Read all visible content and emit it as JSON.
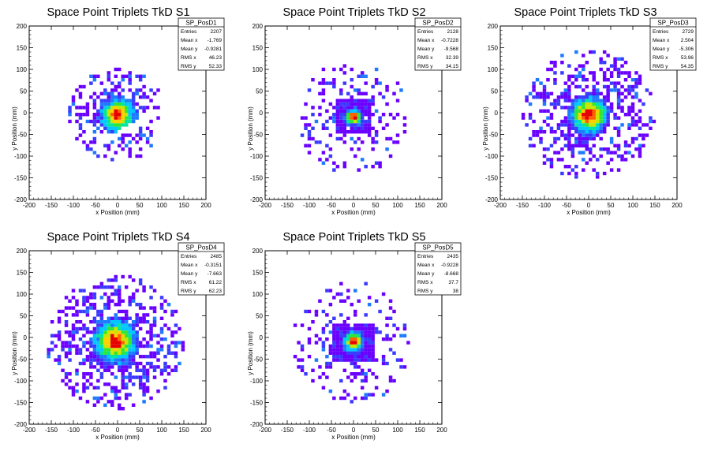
{
  "chart_data": [
    {
      "type": "heatmap",
      "title": "Space Point Triplets TkD S1",
      "xlabel": "x Position (mm)",
      "ylabel": "y Position (mm)",
      "xlim": [
        -200,
        200
      ],
      "ylim": [
        -200,
        200
      ],
      "xticks": [
        "-200",
        "-150",
        "-100",
        "-50",
        "0",
        "50",
        "100",
        "150",
        "200"
      ],
      "yticks": [
        "-200",
        "-150",
        "-100",
        "-50",
        "0",
        "50",
        "100",
        "150",
        "200"
      ],
      "stats": {
        "name": "SP_PosD1",
        "rows": [
          {
            "label": "Entries",
            "value": "2207"
          },
          {
            "label": "Mean x",
            "value": "-1.769"
          },
          {
            "label": "Mean y",
            "value": "-0.9281"
          },
          {
            "label": "RMS x",
            "value": "46.23"
          },
          {
            "label": "RMS y",
            "value": "52.33"
          }
        ]
      },
      "pattern": {
        "center": [
          0,
          -5
        ],
        "core_sigma": 20,
        "halo_radius": 110,
        "density": 0.65,
        "gap_band": true,
        "seed": 11
      }
    },
    {
      "type": "heatmap",
      "title": "Space Point Triplets TkD S2",
      "xlabel": "x Position (mm)",
      "ylabel": "y Position (mm)",
      "xlim": [
        -200,
        200
      ],
      "ylim": [
        -200,
        200
      ],
      "xticks": [
        "-200",
        "-150",
        "-100",
        "-50",
        "0",
        "50",
        "100",
        "150",
        "200"
      ],
      "yticks": [
        "-200",
        "-150",
        "-100",
        "-50",
        "0",
        "50",
        "100",
        "150",
        "200"
      ],
      "stats": {
        "name": "SP_PosD2",
        "rows": [
          {
            "label": "Entries",
            "value": "2128"
          },
          {
            "label": "Mean x",
            "value": "-0.7228"
          },
          {
            "label": "Mean y",
            "value": "-9.568"
          },
          {
            "label": "RMS x",
            "value": "32.39"
          },
          {
            "label": "RMS y",
            "value": "34.15"
          }
        ]
      },
      "pattern": {
        "center": [
          0,
          -10
        ],
        "core_sigma": 10,
        "halo_radius": 130,
        "density": 0.3,
        "inner_box": 40,
        "seed": 23
      }
    },
    {
      "type": "heatmap",
      "title": "Space Point Triplets TkD S3",
      "xlabel": "x Position (mm)",
      "ylabel": "y Position (mm)",
      "xlim": [
        -200,
        200
      ],
      "ylim": [
        -200,
        200
      ],
      "xticks": [
        "-200",
        "-150",
        "-100",
        "-50",
        "0",
        "50",
        "100",
        "150",
        "200"
      ],
      "yticks": [
        "-200",
        "-150",
        "-100",
        "-50",
        "0",
        "50",
        "100",
        "150",
        "200"
      ],
      "stats": {
        "name": "SP_PosD3",
        "rows": [
          {
            "label": "Entries",
            "value": "2729"
          },
          {
            "label": "Mean x",
            "value": "2.504"
          },
          {
            "label": "Mean y",
            "value": "-5.306"
          },
          {
            "label": "RMS x",
            "value": "53.96"
          },
          {
            "label": "RMS y",
            "value": "54.35"
          }
        ]
      },
      "pattern": {
        "center": [
          0,
          -5
        ],
        "core_sigma": 22,
        "halo_radius": 150,
        "density": 0.6,
        "seed": 37
      }
    },
    {
      "type": "heatmap",
      "title": "Space Point Triplets TkD S4",
      "xlabel": "x Position (mm)",
      "ylabel": "y Position (mm)",
      "xlim": [
        -200,
        200
      ],
      "ylim": [
        -200,
        200
      ],
      "xticks": [
        "-200",
        "-150",
        "-100",
        "-50",
        "0",
        "50",
        "100",
        "150",
        "200"
      ],
      "yticks": [
        "-200",
        "-150",
        "-100",
        "-50",
        "0",
        "50",
        "100",
        "150",
        "200"
      ],
      "stats": {
        "name": "SP_PosD4",
        "rows": [
          {
            "label": "Entries",
            "value": "2485"
          },
          {
            "label": "Mean x",
            "value": "-0.3151"
          },
          {
            "label": "Mean y",
            "value": "-7.663"
          },
          {
            "label": "RMS x",
            "value": "61.22"
          },
          {
            "label": "RMS y",
            "value": "62.23"
          }
        ]
      },
      "pattern": {
        "center": [
          -5,
          -10
        ],
        "core_sigma": 25,
        "halo_radius": 155,
        "density": 0.72,
        "seed": 41
      }
    },
    {
      "type": "heatmap",
      "title": "Space Point Triplets TkD S5",
      "xlabel": "x Position (mm)",
      "ylabel": "y Position (mm)",
      "xlim": [
        -200,
        200
      ],
      "ylim": [
        -200,
        200
      ],
      "xticks": [
        "-200",
        "-150",
        "-100",
        "-50",
        "0",
        "50",
        "100",
        "150",
        "200"
      ],
      "yticks": [
        "-200",
        "-150",
        "-100",
        "-50",
        "0",
        "50",
        "100",
        "150",
        "200"
      ],
      "stats": {
        "name": "SP_PosD5",
        "rows": [
          {
            "label": "Entries",
            "value": "2435"
          },
          {
            "label": "Mean x",
            "value": "-0.9228"
          },
          {
            "label": "Mean y",
            "value": "-8.668"
          },
          {
            "label": "RMS x",
            "value": "37.7"
          },
          {
            "label": "RMS y",
            "value": "38"
          }
        ]
      },
      "pattern": {
        "center": [
          0,
          -10
        ],
        "core_sigma": 12,
        "halo_radius": 140,
        "density": 0.32,
        "inner_box": 45,
        "seed": 53
      }
    }
  ],
  "palette": [
    "#6a00ff",
    "#3b3bff",
    "#1e7bff",
    "#00c8ff",
    "#00e6a0",
    "#33e633",
    "#c8e600",
    "#ffd000",
    "#ff6000",
    "#e60000"
  ]
}
